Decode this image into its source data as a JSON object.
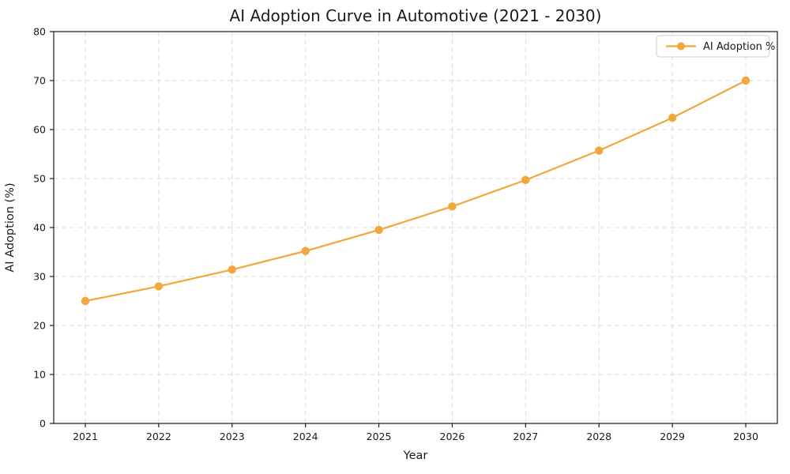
{
  "figure": {
    "background_color": "#ffffff"
  },
  "chart_data": {
    "type": "line",
    "title": "AI Adoption Curve in Automotive (2021 - 2030)",
    "xlabel": "Year",
    "ylabel": "AI Adoption (%)",
    "categories": [
      "2021",
      "2022",
      "2023",
      "2024",
      "2025",
      "2026",
      "2027",
      "2028",
      "2029",
      "2030"
    ],
    "series": [
      {
        "name": "AI Adoption %",
        "values": [
          25.0,
          28.0,
          31.4,
          35.2,
          39.5,
          44.3,
          49.7,
          55.7,
          62.4,
          70.0
        ],
        "color": "#F2A73D",
        "marker": "circle",
        "line_width": 2.2,
        "marker_radius": 5.2
      }
    ],
    "ylim": [
      0,
      80
    ],
    "yticks": [
      0,
      10,
      20,
      30,
      40,
      50,
      60,
      70,
      80
    ],
    "grid": true,
    "grid_line_style": "dashed",
    "grid_color": "#D8D8D8",
    "axis_color": "#1A1A1A",
    "text_color": "#1A1A1A",
    "legend": {
      "position": "upper right",
      "entries": [
        "AI Adoption %"
      ]
    }
  }
}
